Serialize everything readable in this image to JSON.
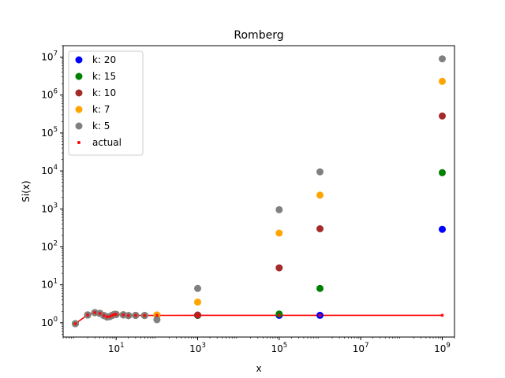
{
  "chart_data": {
    "type": "scatter",
    "title": "Romberg",
    "xlabel": "x",
    "ylabel": "Si(x)",
    "xscale": "log",
    "yscale": "log",
    "xlim": [
      0.5,
      2000000000
    ],
    "ylim": [
      0.42,
      20000000
    ],
    "grid": false,
    "legend_position": "top-left",
    "x_ticks": [
      {
        "value": 10,
        "base": "10",
        "exp": "1"
      },
      {
        "value": 1000,
        "base": "10",
        "exp": "3"
      },
      {
        "value": 100000,
        "base": "10",
        "exp": "5"
      },
      {
        "value": 10000000,
        "base": "10",
        "exp": "7"
      },
      {
        "value": 1000000000,
        "base": "10",
        "exp": "9"
      }
    ],
    "y_ticks": [
      {
        "value": 1,
        "base": "10",
        "exp": "0"
      },
      {
        "value": 10,
        "base": "10",
        "exp": "1"
      },
      {
        "value": 100,
        "base": "10",
        "exp": "2"
      },
      {
        "value": 1000,
        "base": "10",
        "exp": "3"
      },
      {
        "value": 10000,
        "base": "10",
        "exp": "4"
      },
      {
        "value": 100000,
        "base": "10",
        "exp": "5"
      },
      {
        "value": 1000000,
        "base": "10",
        "exp": "6"
      },
      {
        "value": 10000000,
        "base": "10",
        "exp": "7"
      }
    ],
    "series": [
      {
        "name": "k: 20",
        "color": "#0000ff",
        "marker": "dot",
        "points": [
          [
            1,
            0.946
          ],
          [
            2,
            1.605
          ],
          [
            3,
            1.849
          ],
          [
            4,
            1.758
          ],
          [
            5,
            1.55
          ],
          [
            6,
            1.425
          ],
          [
            7,
            1.454
          ],
          [
            8,
            1.574
          ],
          [
            9,
            1.665
          ],
          [
            10,
            1.658
          ],
          [
            15,
            1.618
          ],
          [
            20,
            1.548
          ],
          [
            30,
            1.566
          ],
          [
            50,
            1.552
          ],
          [
            100,
            1.562
          ],
          [
            1000,
            1.571
          ],
          [
            100000,
            1.57
          ],
          [
            1000000,
            1.571
          ],
          [
            1000000000,
            290
          ]
        ]
      },
      {
        "name": "k: 15",
        "color": "#008000",
        "marker": "dot",
        "points": [
          [
            1,
            0.946
          ],
          [
            2,
            1.605
          ],
          [
            3,
            1.849
          ],
          [
            4,
            1.758
          ],
          [
            5,
            1.55
          ],
          [
            6,
            1.425
          ],
          [
            7,
            1.454
          ],
          [
            8,
            1.574
          ],
          [
            9,
            1.665
          ],
          [
            10,
            1.658
          ],
          [
            15,
            1.618
          ],
          [
            20,
            1.548
          ],
          [
            30,
            1.566
          ],
          [
            50,
            1.552
          ],
          [
            100,
            1.562
          ],
          [
            1000,
            1.571
          ],
          [
            100000,
            1.7
          ],
          [
            1000000,
            8
          ],
          [
            1000000000,
            9000
          ]
        ]
      },
      {
        "name": "k: 10",
        "color": "#a52a2a",
        "marker": "dot",
        "points": [
          [
            1,
            0.946
          ],
          [
            2,
            1.605
          ],
          [
            3,
            1.849
          ],
          [
            4,
            1.758
          ],
          [
            5,
            1.55
          ],
          [
            6,
            1.425
          ],
          [
            7,
            1.454
          ],
          [
            8,
            1.574
          ],
          [
            9,
            1.665
          ],
          [
            10,
            1.658
          ],
          [
            15,
            1.618
          ],
          [
            20,
            1.548
          ],
          [
            30,
            1.566
          ],
          [
            50,
            1.552
          ],
          [
            100,
            1.6
          ],
          [
            1000,
            1.6
          ],
          [
            100000,
            28
          ],
          [
            1000000,
            300
          ],
          [
            1000000000,
            280000
          ]
        ]
      },
      {
        "name": "k: 7",
        "color": "#ffa500",
        "marker": "dot",
        "points": [
          [
            1,
            0.946
          ],
          [
            2,
            1.605
          ],
          [
            3,
            1.849
          ],
          [
            4,
            1.758
          ],
          [
            5,
            1.55
          ],
          [
            6,
            1.425
          ],
          [
            7,
            1.454
          ],
          [
            8,
            1.574
          ],
          [
            9,
            1.665
          ],
          [
            10,
            1.658
          ],
          [
            15,
            1.618
          ],
          [
            20,
            1.548
          ],
          [
            30,
            1.566
          ],
          [
            50,
            1.552
          ],
          [
            100,
            1.6
          ],
          [
            1000,
            3.5
          ],
          [
            100000,
            230
          ],
          [
            1000000,
            2300
          ],
          [
            1000000000,
            2300000
          ]
        ]
      },
      {
        "name": "k: 5",
        "color": "#808080",
        "marker": "dot",
        "points": [
          [
            1,
            0.946
          ],
          [
            2,
            1.605
          ],
          [
            3,
            1.849
          ],
          [
            4,
            1.758
          ],
          [
            5,
            1.55
          ],
          [
            6,
            1.425
          ],
          [
            7,
            1.454
          ],
          [
            8,
            1.574
          ],
          [
            9,
            1.665
          ],
          [
            10,
            1.658
          ],
          [
            15,
            1.618
          ],
          [
            20,
            1.548
          ],
          [
            30,
            1.566
          ],
          [
            50,
            1.552
          ],
          [
            100,
            1.2
          ],
          [
            1000,
            8
          ],
          [
            100000,
            950
          ],
          [
            1000000,
            9500
          ],
          [
            1000000000,
            9000000
          ]
        ]
      },
      {
        "name": "actual",
        "color": "#ff0000",
        "marker": "small-dot-line",
        "points": [
          [
            1,
            0.946
          ],
          [
            2,
            1.605
          ],
          [
            3,
            1.849
          ],
          [
            4,
            1.758
          ],
          [
            5,
            1.55
          ],
          [
            6,
            1.425
          ],
          [
            7,
            1.454
          ],
          [
            8,
            1.574
          ],
          [
            9,
            1.665
          ],
          [
            10,
            1.658
          ],
          [
            15,
            1.618
          ],
          [
            20,
            1.548
          ],
          [
            30,
            1.566
          ],
          [
            50,
            1.552
          ],
          [
            100,
            1.562
          ],
          [
            1000,
            1.571
          ],
          [
            100000,
            1.571
          ],
          [
            1000000,
            1.571
          ],
          [
            1000000000,
            1.571
          ]
        ]
      }
    ]
  }
}
